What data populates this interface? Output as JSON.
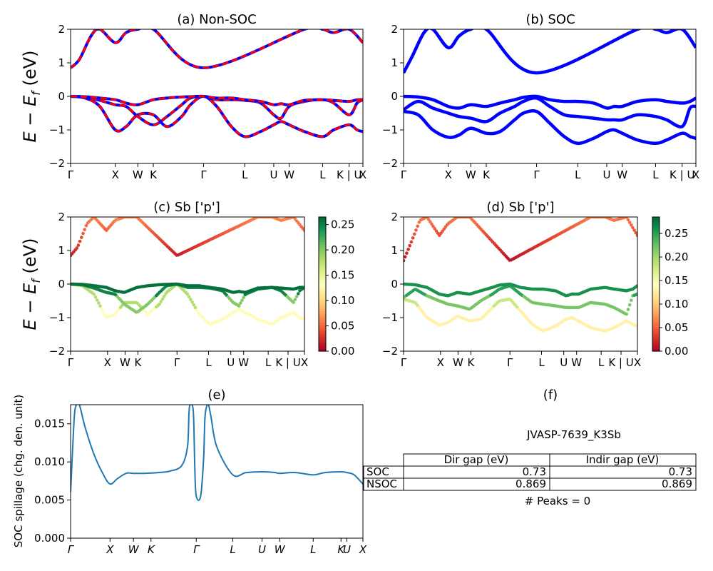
{
  "ylabel_band": "E − E_f (eV)",
  "hs_labels": [
    "Γ",
    "X",
    "W",
    "K",
    "Γ",
    "L",
    "U",
    "W",
    "L",
    "K | U",
    "X"
  ],
  "colors": {
    "band_blue": "#0000ff",
    "band_red": "#ff0000",
    "spillage": "#1f77b4"
  },
  "panels": {
    "a": {
      "title": "(a) Non-SOC"
    },
    "b": {
      "title": "(b) SOC"
    },
    "c": {
      "title": "(c)  Sb ['p']"
    },
    "d": {
      "title": "(d) Sb ['p']"
    },
    "e": {
      "title": "(e)",
      "ylabel": "SOC spillage (chg. den. unit)",
      "xticks": [
        "Γ",
        "X",
        "W",
        "K",
        "Γ",
        "L",
        "U",
        "W",
        "L",
        "K",
        "U",
        "X"
      ]
    },
    "f": {
      "title": "(f)"
    }
  },
  "table": {
    "caption": "JVASP-7639_K3Sb",
    "headers": [
      "Dir gap (eV)",
      "Indir gap (eV)"
    ],
    "rows": [
      {
        "label": "SOC",
        "dir": "0.73",
        "indir": "0.73"
      },
      {
        "label": "NSOC",
        "dir": "0.869",
        "indir": "0.869"
      }
    ],
    "footer": "# Peaks = 0"
  },
  "chart_data": [
    {
      "type": "line",
      "panel": "a",
      "title": "(a) Non-SOC",
      "ylabel": "E − E_f (eV)",
      "ylim": [
        -2,
        2
      ],
      "yticks": [
        -2,
        -1,
        0,
        1,
        2
      ],
      "xticks": [
        "Γ",
        "X",
        "W",
        "K",
        "Γ",
        "L",
        "U",
        "W",
        "L",
        "K | U",
        "X"
      ],
      "kpos": [
        0,
        0.153,
        0.23,
        0.283,
        0.455,
        0.596,
        0.695,
        0.748,
        0.862,
        0.953,
        1.0
      ],
      "series": [
        {
          "style": "blue solid + red dashed",
          "x": [
            0,
            0.05,
            0.1,
            0.153,
            0.19,
            0.23,
            0.283,
            0.33,
            0.38,
            0.41,
            0.455,
            0.5,
            0.55,
            0.596,
            0.65,
            0.695,
            0.72,
            0.748,
            0.8,
            0.862,
            0.9,
            0.953,
            0.98,
            1.0
          ],
          "y": [
            0,
            -0.05,
            -0.3,
            -1.0,
            -0.9,
            -0.55,
            -0.55,
            -0.9,
            -0.6,
            -0.25,
            0,
            -0.3,
            -0.9,
            -1.2,
            -1.05,
            -0.85,
            -0.75,
            -0.85,
            -1.05,
            -1.2,
            -1.0,
            -0.85,
            -1.0,
            -1.05
          ]
        },
        {
          "style": "blue solid + red dashed",
          "x": [
            0,
            0.05,
            0.1,
            0.153,
            0.19,
            0.23,
            0.283,
            0.33,
            0.38,
            0.41,
            0.455,
            0.5,
            0.55,
            0.596,
            0.65,
            0.695,
            0.72,
            0.748,
            0.8,
            0.862,
            0.9,
            0.953,
            0.98,
            1.0
          ],
          "y": [
            0,
            -0.02,
            -0.12,
            -0.25,
            -0.3,
            -0.6,
            -0.85,
            -0.6,
            -0.25,
            -0.05,
            0,
            -0.1,
            -0.1,
            -0.12,
            -0.2,
            -0.55,
            -0.65,
            -0.3,
            -0.15,
            -0.1,
            -0.2,
            -0.55,
            -0.2,
            -0.1
          ]
        },
        {
          "style": "blue solid + red dashed",
          "x": [
            0,
            0.05,
            0.1,
            0.153,
            0.19,
            0.23,
            0.283,
            0.33,
            0.38,
            0.41,
            0.455,
            0.5,
            0.55,
            0.596,
            0.65,
            0.695,
            0.72,
            0.748,
            0.8,
            0.862,
            0.9,
            0.953,
            0.98,
            1.0
          ],
          "y": [
            0,
            -0.01,
            -0.05,
            -0.1,
            -0.2,
            -0.25,
            -0.1,
            -0.05,
            -0.02,
            -0.01,
            0,
            -0.05,
            -0.05,
            -0.1,
            -0.15,
            -0.25,
            -0.22,
            -0.25,
            -0.12,
            -0.1,
            -0.12,
            -0.15,
            -0.1,
            -0.1
          ]
        },
        {
          "style": "blue solid + red dashed",
          "x": [
            0,
            0.03,
            0.07,
            0.1,
            0.153,
            0.19,
            0.23,
            0.283,
            0.455,
            0.8,
            0.862,
            0.9,
            0.953,
            1.0
          ],
          "y": [
            0.85,
            1.1,
            1.8,
            2.0,
            1.6,
            1.9,
            2.0,
            2.0,
            0.85,
            2.0,
            2.0,
            1.9,
            2.0,
            1.6
          ]
        }
      ]
    },
    {
      "type": "line",
      "panel": "b",
      "title": "(b) SOC",
      "ylim": [
        -2,
        2
      ],
      "yticks": [
        -2,
        -1,
        0,
        1,
        2
      ],
      "xticks": [
        "Γ",
        "X",
        "W",
        "K",
        "Γ",
        "L",
        "U",
        "W",
        "L",
        "K | U",
        "X"
      ],
      "series": [
        {
          "x": [
            0,
            0.05,
            0.1,
            0.153,
            0.19,
            0.23,
            0.283,
            0.33,
            0.38,
            0.41,
            0.455,
            0.5,
            0.55,
            0.596,
            0.65,
            0.695,
            0.72,
            0.748,
            0.8,
            0.862,
            0.9,
            0.953,
            0.98,
            1.0
          ],
          "y": [
            -0.45,
            -0.55,
            -1.0,
            -1.22,
            -1.15,
            -0.95,
            -1.1,
            -1.05,
            -0.7,
            -0.5,
            -0.45,
            -0.8,
            -1.2,
            -1.4,
            -1.25,
            -1.05,
            -1.0,
            -1.1,
            -1.3,
            -1.4,
            -1.3,
            -1.1,
            -1.2,
            -1.25
          ]
        },
        {
          "x": [
            0,
            0.05,
            0.1,
            0.153,
            0.19,
            0.23,
            0.283,
            0.33,
            0.38,
            0.41,
            0.455,
            0.5,
            0.55,
            0.596,
            0.65,
            0.695,
            0.72,
            0.748,
            0.8,
            0.862,
            0.9,
            0.953,
            0.98,
            1.0
          ],
          "y": [
            -0.4,
            -0.15,
            -0.35,
            -0.5,
            -0.6,
            -0.65,
            -0.75,
            -0.5,
            -0.3,
            -0.15,
            -0.05,
            -0.3,
            -0.55,
            -0.6,
            -0.65,
            -0.7,
            -0.7,
            -0.7,
            -0.55,
            -0.6,
            -0.7,
            -0.9,
            -0.35,
            -0.3
          ]
        },
        {
          "x": [
            0,
            0.05,
            0.1,
            0.153,
            0.19,
            0.23,
            0.283,
            0.33,
            0.38,
            0.41,
            0.455,
            0.5,
            0.55,
            0.596,
            0.65,
            0.695,
            0.72,
            0.748,
            0.8,
            0.862,
            0.9,
            0.953,
            0.98,
            1.0
          ],
          "y": [
            0,
            -0.02,
            -0.1,
            -0.3,
            -0.35,
            -0.25,
            -0.3,
            -0.2,
            -0.1,
            -0.03,
            0,
            -0.1,
            -0.15,
            -0.15,
            -0.2,
            -0.35,
            -0.3,
            -0.3,
            -0.15,
            -0.1,
            -0.15,
            -0.2,
            -0.15,
            -0.05
          ]
        },
        {
          "x": [
            0,
            0.03,
            0.07,
            0.1,
            0.153,
            0.19,
            0.23,
            0.283,
            0.455,
            0.8,
            0.862,
            0.9,
            0.953,
            1.0
          ],
          "y": [
            0.7,
            1.2,
            1.9,
            2.0,
            1.45,
            1.8,
            2.0,
            2.0,
            0.7,
            2.0,
            2.0,
            1.9,
            2.0,
            1.45
          ]
        }
      ]
    },
    {
      "type": "scatter",
      "panel": "c",
      "title": "(c)  Sb ['p']",
      "ylabel": "E − E_f (eV)",
      "ylim": [
        -2,
        2
      ],
      "yticks": [
        -2,
        -1,
        0,
        1,
        2
      ],
      "colorbar": {
        "min": 0.0,
        "max": 0.265,
        "ticks": [
          "0.00",
          "0.05",
          "0.10",
          "0.15",
          "0.20",
          "0.25"
        ],
        "cmap": "RdYlGn"
      },
      "xticks": [
        "Γ",
        "X",
        "W",
        "K",
        "Γ",
        "L",
        "U",
        "W",
        "L",
        "K | U",
        "X"
      ],
      "kpos": [
        0,
        0.158,
        0.233,
        0.288,
        0.455,
        0.59,
        0.685,
        0.74,
        0.845,
        0.93,
        1.0
      ],
      "band_weights": [
        0.13,
        0.2,
        0.26,
        0.03
      ]
    },
    {
      "type": "scatter",
      "panel": "d",
      "title": "(d) Sb ['p']",
      "ylim": [
        -2,
        2
      ],
      "yticks": [
        -2,
        -1,
        0,
        1,
        2
      ],
      "colorbar": {
        "min": 0.0,
        "max": 0.285,
        "ticks": [
          "0.00",
          "0.05",
          "0.10",
          "0.15",
          "0.20",
          "0.25"
        ],
        "cmap": "RdYlGn"
      },
      "xticks": [
        "Γ",
        "X",
        "W",
        "K",
        "Γ",
        "L",
        "U",
        "W",
        "L",
        "K | U",
        "X"
      ],
      "band_weights": [
        0.13,
        0.22,
        0.26,
        0.03
      ]
    },
    {
      "type": "line",
      "panel": "e",
      "title": "(e)",
      "ylabel": "SOC spillage (chg. den. unit)",
      "ylim": [
        0,
        0.0175
      ],
      "yticks": [
        "0.000",
        "0.005",
        "0.010",
        "0.015"
      ],
      "xticks": [
        "Γ",
        "X",
        "W",
        "K",
        "Γ",
        "L",
        "U",
        "W",
        "L",
        "K",
        "U",
        "X"
      ],
      "kpos": [
        0,
        0.135,
        0.215,
        0.275,
        0.43,
        0.555,
        0.655,
        0.715,
        0.83,
        0.925,
        0.945,
        1.0
      ],
      "x": [
        0,
        0.012,
        0.02,
        0.03,
        0.05,
        0.08,
        0.11,
        0.135,
        0.16,
        0.19,
        0.215,
        0.25,
        0.3,
        0.34,
        0.38,
        0.4,
        0.405,
        0.41,
        0.42,
        0.425,
        0.43,
        0.445,
        0.455,
        0.46,
        0.47,
        0.48,
        0.5,
        0.555,
        0.6,
        0.655,
        0.7,
        0.715,
        0.77,
        0.83,
        0.87,
        0.925,
        0.945,
        0.97,
        1.0
      ],
      "y": [
        0.006,
        0.0155,
        0.0175,
        0.0175,
        0.0145,
        0.011,
        0.0085,
        0.0071,
        0.0078,
        0.0085,
        0.0085,
        0.0085,
        0.0086,
        0.0088,
        0.0095,
        0.012,
        0.0165,
        0.0175,
        0.0165,
        0.009,
        0.0055,
        0.0055,
        0.0105,
        0.016,
        0.0175,
        0.016,
        0.012,
        0.0083,
        0.0086,
        0.0087,
        0.0086,
        0.0085,
        0.0086,
        0.0083,
        0.0086,
        0.0087,
        0.0086,
        0.0083,
        0.0071
      ]
    }
  ]
}
